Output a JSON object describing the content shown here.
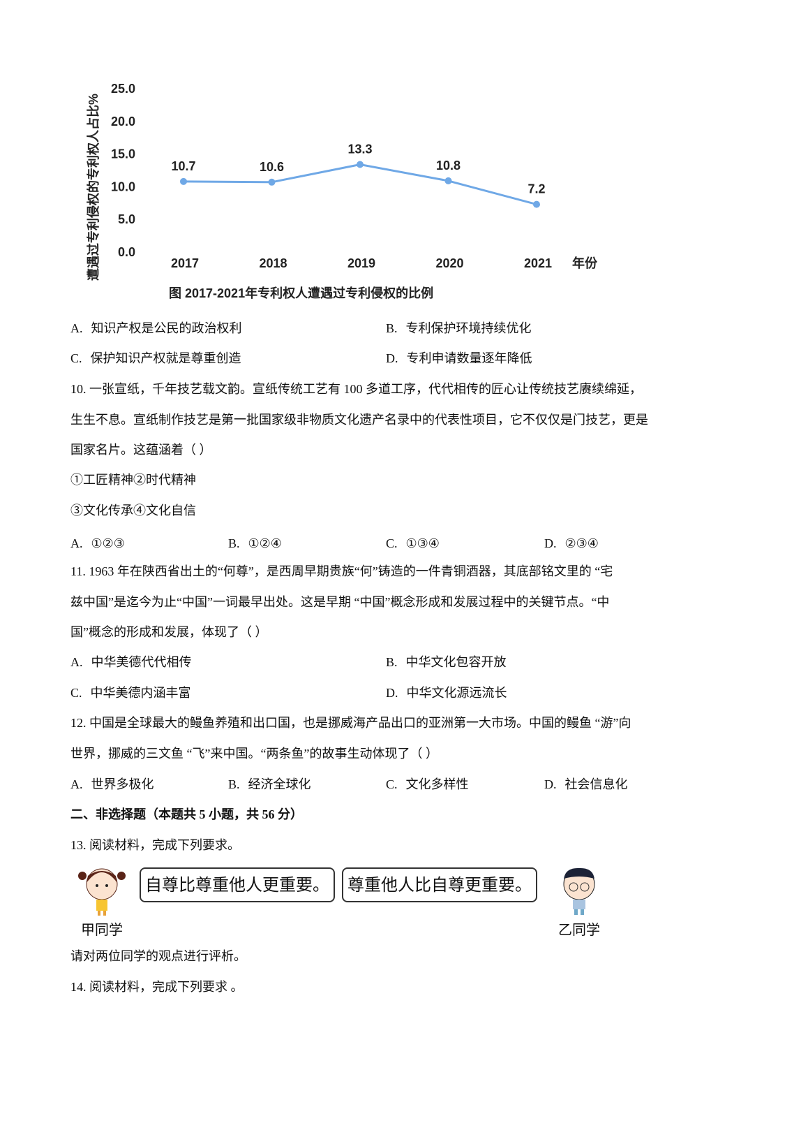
{
  "chart_data": {
    "type": "line",
    "title": "图  2017-2021年专利权人遭遇过专利侵权的比例",
    "ylabel": "遭遇过专利侵权的专利权人占比%",
    "xlabel": "年份",
    "categories": [
      "2017",
      "2018",
      "2019",
      "2020",
      "2021"
    ],
    "values": [
      10.7,
      10.6,
      13.3,
      10.8,
      7.2
    ],
    "data_labels": [
      "10.7",
      "10.6",
      "13.3",
      "10.8",
      "7.2"
    ],
    "ylim": [
      0,
      25
    ],
    "yticks": [
      "0.0",
      "5.0",
      "10.0",
      "15.0",
      "20.0",
      "25.0"
    ],
    "grid": false,
    "line_color": "#6fa8e6"
  },
  "q9_options": [
    {
      "key": "A.",
      "text": "知识产权是公民的政治权利"
    },
    {
      "key": "B.",
      "text": "专利保护环境持续优化"
    },
    {
      "key": "C.",
      "text": "保护知识产权就是尊重创造"
    },
    {
      "key": "D.",
      "text": "专利申请数量逐年降低"
    }
  ],
  "q10": {
    "lines": [
      "10.  一张宣纸，千年技艺载文韵。宣纸传统工艺有  100 多道工序，代代相传的匠心让传统技艺赓续绵延，",
      "生生不息。宣纸制作技艺是第一批国家级非物质文化遗产名录中的代表性项目，它不仅仅是门技艺，更是",
      "国家名片。这蕴涵着（      ）",
      "①工匠精神②时代精神",
      "③文化传承④文化自信"
    ],
    "options": [
      {
        "key": "A.",
        "text": "①②③"
      },
      {
        "key": "B.",
        "text": "①②④"
      },
      {
        "key": "C.",
        "text": "①③④"
      },
      {
        "key": "D.",
        "text": "②③④"
      }
    ]
  },
  "q11": {
    "lines": [
      "11.  1963 年在陕西省出土的“何尊”，是西周早期贵族“何”铸造的一件青铜酒器，其底部铭文里的 “宅",
      "兹中国”是迄今为止“中国”一词最早出处。这是早期 “中国”概念形成和发展过程中的关键节点。“中",
      "国”概念的形成和发展，体现了（      ）"
    ],
    "options": [
      {
        "key": "A.",
        "text": "中华美德代代相传"
      },
      {
        "key": "B.",
        "text": "中华文化包容开放"
      },
      {
        "key": "C.",
        "text": "中华美德内涵丰富"
      },
      {
        "key": "D.",
        "text": "中华文化源远流长"
      }
    ]
  },
  "q12": {
    "lines": [
      "12.  中国是全球最大的鳗鱼养殖和出口国，也是挪威海产品出口的亚洲第一大市场。中国的鳗鱼  “游”向",
      "世界，挪威的三文鱼 “飞”来中国。“两条鱼”的故事生动体现了（      ）"
    ],
    "options": [
      {
        "key": "A.",
        "text": "世界多极化"
      },
      {
        "key": "B.",
        "text": "经济全球化"
      },
      {
        "key": "C.",
        "text": "文化多样性"
      },
      {
        "key": "D.",
        "text": "社会信息化"
      }
    ]
  },
  "section2": "二、非选择题（本题共 5 小题，共 56 分）",
  "q13": {
    "intro": "13.  阅读材料，完成下列要求。",
    "student_a": {
      "name": "甲同学",
      "speech": "自尊比尊重他人更重要。"
    },
    "student_b": {
      "name": "乙同学",
      "speech": "尊重他人比自尊更重要。"
    },
    "prompt": "请对两位同学的观点进行评析。"
  },
  "q14": {
    "intro": "14.  阅读材料，完成下列要求 。"
  }
}
